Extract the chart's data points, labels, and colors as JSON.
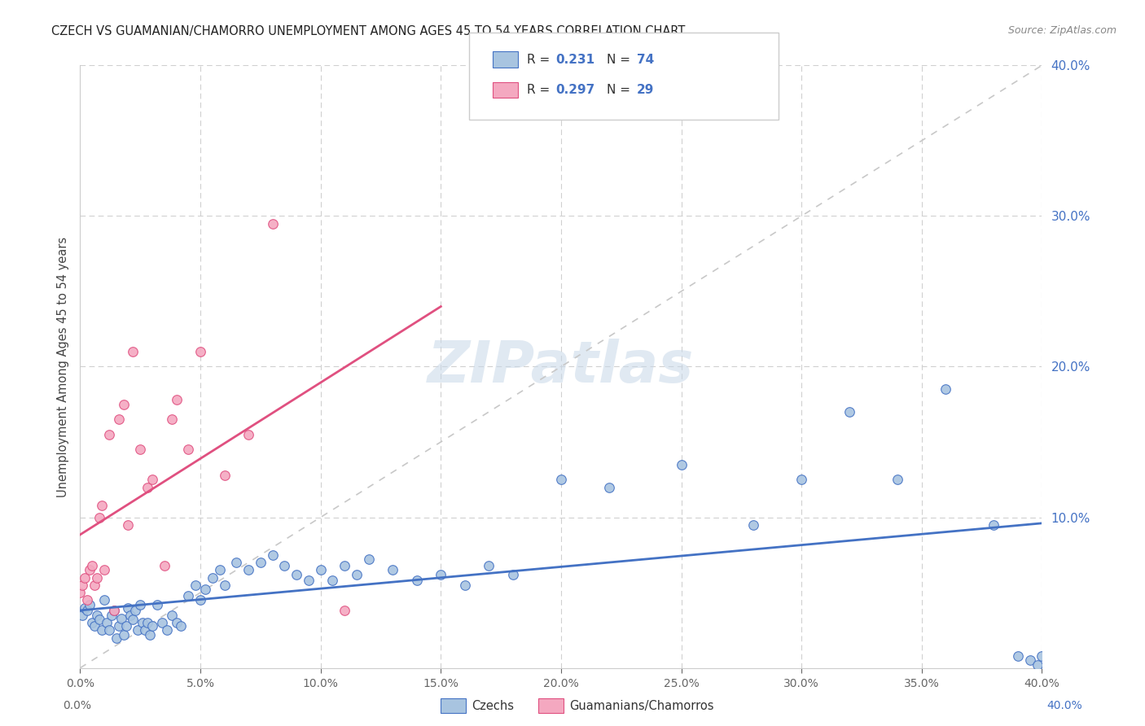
{
  "title": "CZECH VS GUAMANIAN/CHAMORRO UNEMPLOYMENT AMONG AGES 45 TO 54 YEARS CORRELATION CHART",
  "source": "Source: ZipAtlas.com",
  "ylabel": "Unemployment Among Ages 45 to 54 years",
  "legend_label1": "Czechs",
  "legend_label2": "Guamanians/Chamorros",
  "R1": 0.231,
  "N1": 74,
  "R2": 0.297,
  "N2": 29,
  "color1": "#a8c4e0",
  "color2": "#f4a8c0",
  "trend_color1": "#4472c4",
  "trend_color2": "#e05080",
  "ref_line_color": "#c8c8c8",
  "xlim": [
    0,
    0.4
  ],
  "ylim": [
    0,
    0.4
  ],
  "xtick_positions": [
    0.0,
    0.05,
    0.1,
    0.15,
    0.2,
    0.25,
    0.3,
    0.35,
    0.4
  ],
  "ytick_major": [
    0.1,
    0.2,
    0.3,
    0.4
  ],
  "czech_x": [
    0.001,
    0.002,
    0.003,
    0.004,
    0.005,
    0.006,
    0.007,
    0.008,
    0.009,
    0.01,
    0.011,
    0.012,
    0.013,
    0.014,
    0.015,
    0.016,
    0.017,
    0.018,
    0.019,
    0.02,
    0.021,
    0.022,
    0.023,
    0.024,
    0.025,
    0.026,
    0.027,
    0.028,
    0.029,
    0.03,
    0.032,
    0.034,
    0.036,
    0.038,
    0.04,
    0.042,
    0.045,
    0.048,
    0.05,
    0.052,
    0.055,
    0.058,
    0.06,
    0.065,
    0.07,
    0.075,
    0.08,
    0.085,
    0.09,
    0.095,
    0.1,
    0.105,
    0.11,
    0.115,
    0.12,
    0.13,
    0.14,
    0.15,
    0.16,
    0.17,
    0.18,
    0.2,
    0.22,
    0.25,
    0.28,
    0.3,
    0.32,
    0.34,
    0.36,
    0.38,
    0.39,
    0.395,
    0.398,
    0.4
  ],
  "czech_y": [
    0.035,
    0.04,
    0.038,
    0.042,
    0.03,
    0.028,
    0.035,
    0.032,
    0.025,
    0.045,
    0.03,
    0.025,
    0.035,
    0.038,
    0.02,
    0.028,
    0.033,
    0.022,
    0.028,
    0.04,
    0.035,
    0.032,
    0.038,
    0.025,
    0.042,
    0.03,
    0.025,
    0.03,
    0.022,
    0.028,
    0.042,
    0.03,
    0.025,
    0.035,
    0.03,
    0.028,
    0.048,
    0.055,
    0.045,
    0.052,
    0.06,
    0.065,
    0.055,
    0.07,
    0.065,
    0.07,
    0.075,
    0.068,
    0.062,
    0.058,
    0.065,
    0.058,
    0.068,
    0.062,
    0.072,
    0.065,
    0.058,
    0.062,
    0.055,
    0.068,
    0.062,
    0.125,
    0.12,
    0.135,
    0.095,
    0.125,
    0.17,
    0.125,
    0.185,
    0.095,
    0.008,
    0.005,
    0.002,
    0.008
  ],
  "guam_x": [
    0.0,
    0.001,
    0.002,
    0.003,
    0.004,
    0.005,
    0.006,
    0.007,
    0.008,
    0.009,
    0.01,
    0.012,
    0.014,
    0.016,
    0.018,
    0.02,
    0.022,
    0.025,
    0.028,
    0.03,
    0.035,
    0.038,
    0.04,
    0.045,
    0.05,
    0.06,
    0.07,
    0.08,
    0.11
  ],
  "guam_y": [
    0.05,
    0.055,
    0.06,
    0.045,
    0.065,
    0.068,
    0.055,
    0.06,
    0.1,
    0.108,
    0.065,
    0.155,
    0.038,
    0.165,
    0.175,
    0.095,
    0.21,
    0.145,
    0.12,
    0.125,
    0.068,
    0.165,
    0.178,
    0.145,
    0.21,
    0.128,
    0.155,
    0.295,
    0.038
  ]
}
